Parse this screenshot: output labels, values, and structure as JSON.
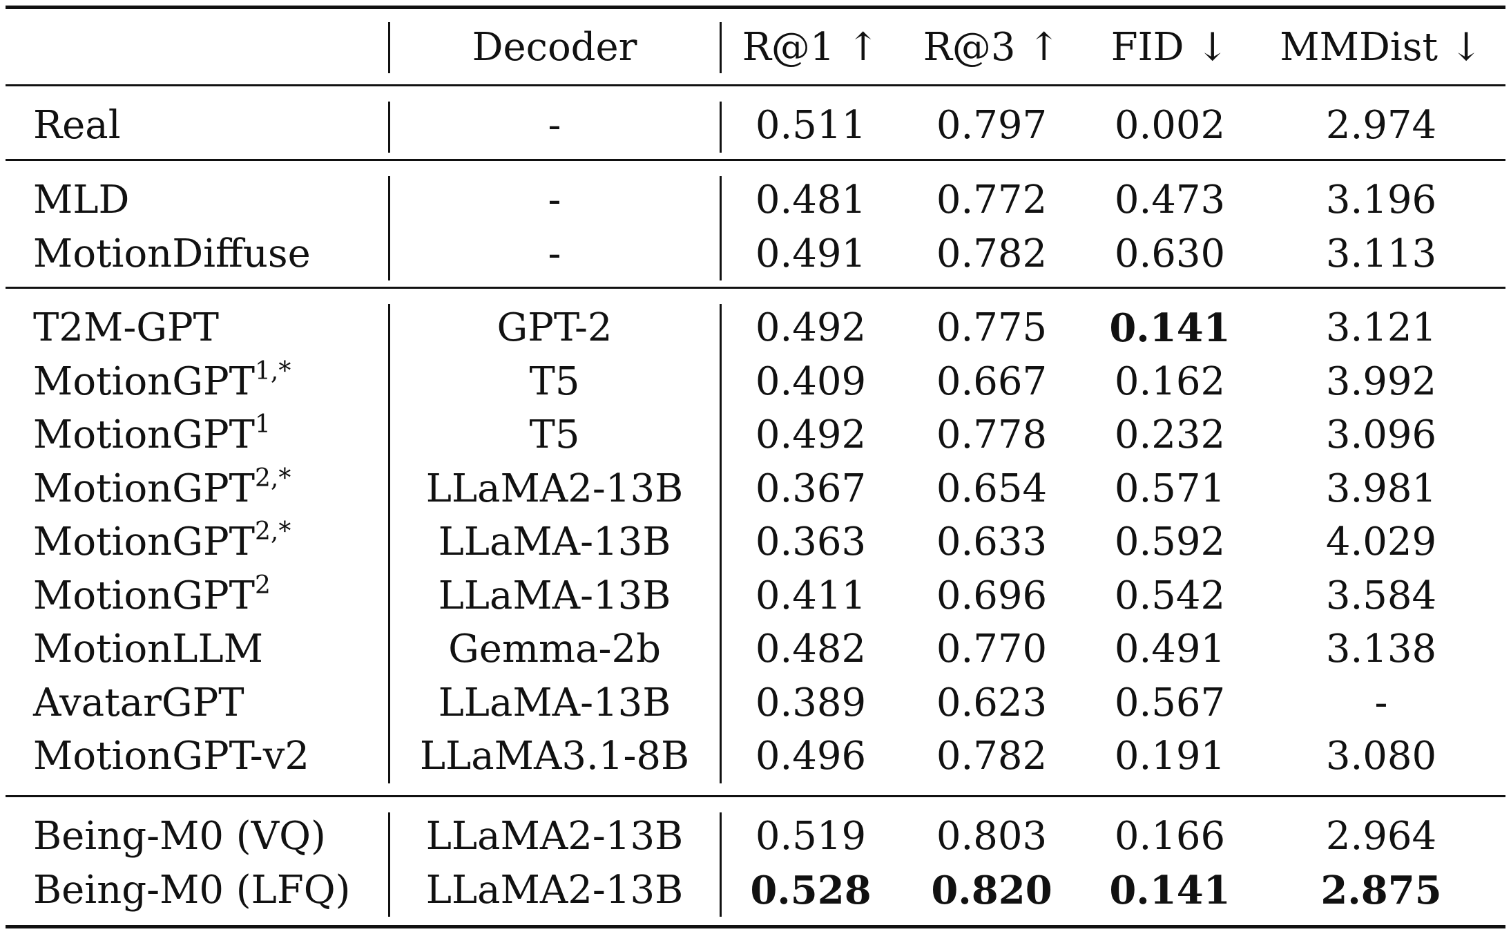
{
  "header": {
    "cols": [
      "",
      "Decoder",
      "R@1 ↑",
      "R@3 ↑",
      "FID ↓",
      "MMDist ↓"
    ]
  },
  "groups": [
    {
      "rows": [
        {
          "method": "Real",
          "sup": "",
          "decoder": "-",
          "r1": "0.511",
          "r3": "0.797",
          "fid": "0.002",
          "mmdist": "2.974"
        }
      ]
    },
    {
      "rows": [
        {
          "method": "MLD",
          "sup": "",
          "decoder": "-",
          "r1": "0.481",
          "r3": "0.772",
          "fid": "0.473",
          "mmdist": "3.196"
        },
        {
          "method": "MotionDiffuse",
          "sup": "",
          "decoder": "-",
          "r1": "0.491",
          "r3": "0.782",
          "fid": "0.630",
          "mmdist": "3.113"
        }
      ]
    },
    {
      "rows": [
        {
          "method": "T2M-GPT",
          "sup": "",
          "decoder": "GPT-2",
          "r1": "0.492",
          "r3": "0.775",
          "fid": "0.141",
          "mmdist": "3.121",
          "bold": [
            "fid"
          ]
        },
        {
          "method": "MotionGPT",
          "sup": "1,*",
          "decoder": "T5",
          "r1": "0.409",
          "r3": "0.667",
          "fid": "0.162",
          "mmdist": "3.992"
        },
        {
          "method": "MotionGPT",
          "sup": "1",
          "decoder": "T5",
          "r1": "0.492",
          "r3": "0.778",
          "fid": "0.232",
          "mmdist": "3.096"
        },
        {
          "method": "MotionGPT",
          "sup": "2,*",
          "decoder": "LLaMA2-13B",
          "r1": "0.367",
          "r3": "0.654",
          "fid": "0.571",
          "mmdist": "3.981"
        },
        {
          "method": "MotionGPT",
          "sup": "2,*",
          "decoder": "LLaMA-13B",
          "r1": "0.363",
          "r3": "0.633",
          "fid": "0.592",
          "mmdist": "4.029"
        },
        {
          "method": "MotionGPT",
          "sup": "2",
          "decoder": "LLaMA-13B",
          "r1": "0.411",
          "r3": "0.696",
          "fid": "0.542",
          "mmdist": "3.584"
        },
        {
          "method": "MotionLLM",
          "sup": "",
          "decoder": "Gemma-2b",
          "r1": "0.482",
          "r3": "0.770",
          "fid": "0.491",
          "mmdist": "3.138"
        },
        {
          "method": "AvatarGPT",
          "sup": "",
          "decoder": "LLaMA-13B",
          "r1": "0.389",
          "r3": "0.623",
          "fid": "0.567",
          "mmdist": "-"
        },
        {
          "method": "MotionGPT-v2",
          "sup": "",
          "decoder": "LLaMA3.1-8B",
          "r1": "0.496",
          "r3": "0.782",
          "fid": "0.191",
          "mmdist": "3.080"
        }
      ]
    },
    {
      "rows": [
        {
          "method": "Being-M0 (VQ)",
          "sup": "",
          "decoder": "LLaMA2-13B",
          "r1": "0.519",
          "r3": "0.803",
          "fid": "0.166",
          "mmdist": "2.964"
        },
        {
          "method": "Being-M0 (LFQ)",
          "sup": "",
          "decoder": "LLaMA2-13B",
          "r1": "0.528",
          "r3": "0.820",
          "fid": "0.141",
          "mmdist": "2.875",
          "bold": [
            "r1",
            "r3",
            "fid",
            "mmdist"
          ]
        }
      ]
    }
  ]
}
